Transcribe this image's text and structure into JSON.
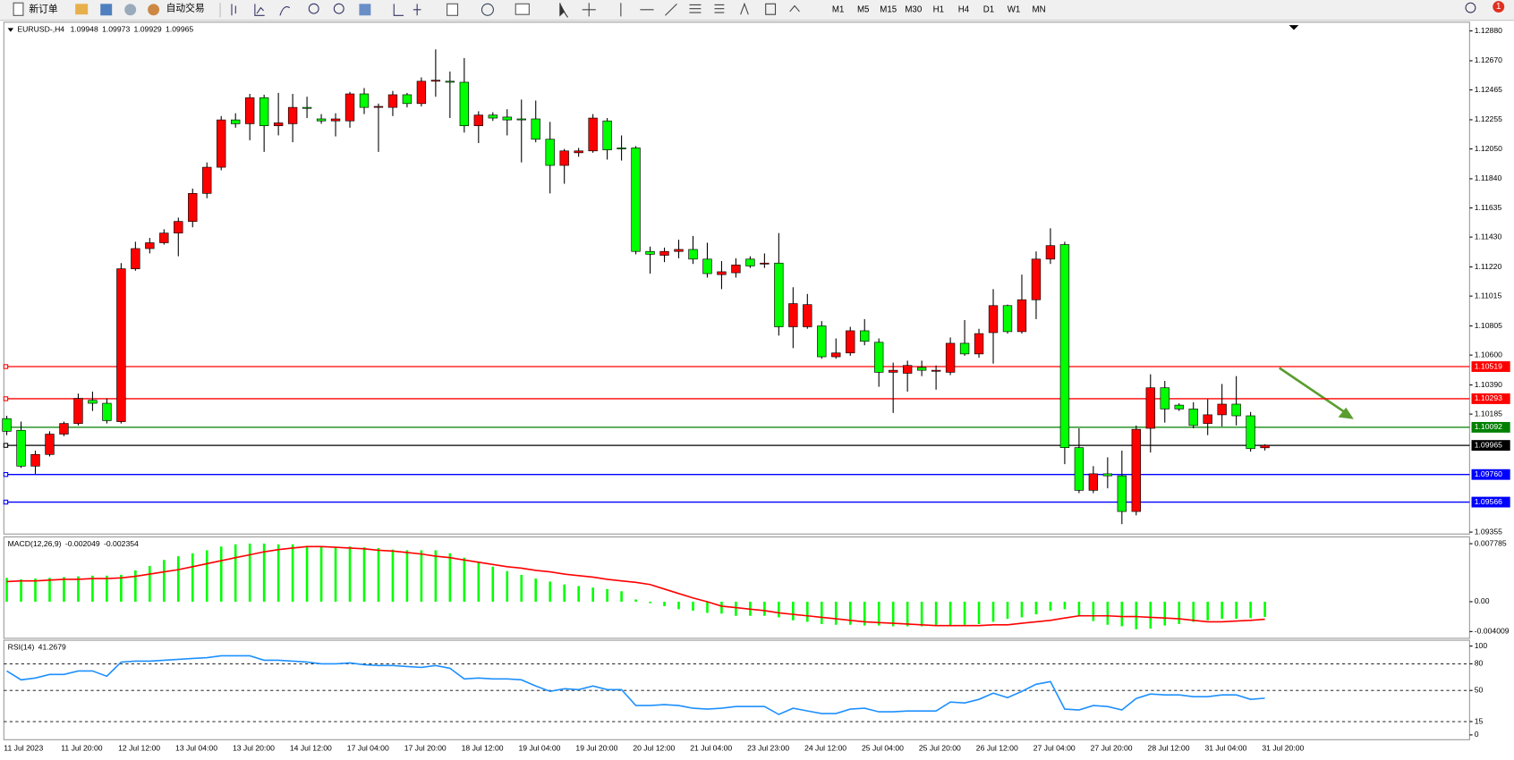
{
  "toolbar": {
    "buttons": [
      "新订单",
      "自动交易"
    ],
    "timeframes": [
      "M1",
      "M5",
      "M15",
      "M30",
      "H1",
      "H4",
      "D1",
      "W1",
      "MN"
    ],
    "badge": 1
  },
  "chart_data": [
    {
      "type": "candlestick",
      "title": "EURUSD-,H4",
      "categories": [
        "11 Jul 2023",
        null,
        null,
        null,
        "11 Jul 20:00",
        null,
        null,
        null,
        "12 Jul 12:00",
        null,
        null,
        null,
        "13 Jul 04:00",
        null,
        null,
        null,
        "13 Jul 20:00",
        null,
        null,
        null,
        "14 Jul 12:00",
        null,
        null,
        null,
        "17 Jul 04:00",
        null,
        null,
        null,
        "17 Jul 20:00",
        null,
        null,
        null,
        "18 Jul 12:00",
        null,
        null,
        null,
        "19 Jul 04:00",
        null,
        null,
        null,
        "19 Jul 20:00",
        null,
        null,
        null,
        "20 Jul 12:00",
        null,
        null,
        null,
        "21 Jul 04:00",
        null,
        null,
        null,
        "23 Jul 23:00",
        null,
        null,
        null,
        "24 Jul 12:00",
        null,
        null,
        null,
        "25 Jul 04:00",
        null,
        null,
        null,
        "25 Jul 20:00",
        null,
        null,
        null,
        "26 Jul 12:00",
        null,
        null,
        null,
        "27 Jul 04:00",
        null,
        null,
        null,
        "27 Jul 20:00",
        null,
        null,
        null,
        "28 Jul 12:00",
        null,
        null,
        null,
        "31 Jul 04:00",
        null,
        null,
        null,
        "31 Jul 20:00"
      ],
      "open": [
        1.10153,
        1.10071,
        1.09819,
        1.09901,
        1.10044,
        1.10119,
        1.10282,
        1.10261,
        1.10132,
        1.11207,
        1.11349,
        1.1139,
        1.11458,
        1.1154,
        1.11737,
        1.11921,
        1.12254,
        1.12227,
        1.1241,
        1.12213,
        1.12227,
        1.12342,
        1.12261,
        1.12247,
        1.12247,
        1.12437,
        1.12342,
        1.12342,
        1.12431,
        1.12369,
        1.12526,
        1.12526,
        1.12519,
        1.12213,
        1.12288,
        1.12274,
        1.12261,
        1.12261,
        1.12118,
        1.11934,
        1.12023,
        1.12036,
        1.12247,
        1.12057,
        1.12057,
        1.11329,
        1.11302,
        1.11329,
        1.11343,
        1.11275,
        1.11166,
        1.11179,
        1.11275,
        1.11241,
        1.11247,
        1.10799,
        1.10799,
        1.10805,
        1.10588,
        1.10615,
        1.10771,
        1.1069,
        1.10479,
        1.10472,
        1.10513,
        1.10486,
        1.10479,
        1.10683,
        1.10608,
        1.10758,
        1.10948,
        1.10765,
        1.10989,
        1.11275,
        1.11377,
        1.09949,
        1.09649,
        1.09765,
        1.09751,
        1.095,
        1.10085,
        1.1037,
        1.10248,
        1.10221,
        1.10119,
        1.1018,
        1.10255,
        1.10173,
        1.09948
      ],
      "high": [
        1.10173,
        1.10132,
        1.09928,
        1.10064,
        1.10132,
        1.10329,
        1.10343,
        1.10295,
        1.11247,
        1.11397,
        1.11424,
        1.11485,
        1.11567,
        1.11771,
        1.11955,
        1.12281,
        1.12301,
        1.12437,
        1.12431,
        1.12444,
        1.12437,
        1.12417,
        1.12295,
        1.12301,
        1.12451,
        1.12478,
        1.12369,
        1.12458,
        1.12444,
        1.12553,
        1.1275,
        1.12594,
        1.12689,
        1.12315,
        1.12308,
        1.12329,
        1.12397,
        1.1239,
        1.1224,
        1.1205,
        1.12057,
        1.12295,
        1.12267,
        1.12145,
        1.1207,
        1.11363,
        1.11356,
        1.11411,
        1.11438,
        1.1139,
        1.11261,
        1.11281,
        1.11295,
        1.11315,
        1.11458,
        1.11077,
        1.1103,
        1.10839,
        1.10717,
        1.10799,
        1.10853,
        1.10717,
        1.10547,
        1.10561,
        1.10561,
        1.10527,
        1.10724,
        1.10846,
        1.10785,
        1.11064,
        1.10955,
        1.11166,
        1.11329,
        1.11492,
        1.11397,
        1.10085,
        1.09819,
        1.09881,
        1.09928,
        1.10105,
        1.10465,
        1.10418,
        1.10261,
        1.10268,
        1.10289,
        1.10397,
        1.10452,
        1.102,
        1.09973
      ],
      "low": [
        1.10037,
        1.09806,
        1.09765,
        1.09887,
        1.1003,
        1.10105,
        1.10207,
        1.10119,
        1.10119,
        1.11193,
        1.11315,
        1.11377,
        1.11295,
        1.11499,
        1.11703,
        1.119,
        1.12199,
        1.12111,
        1.12029,
        1.12145,
        1.12097,
        1.12267,
        1.12227,
        1.12138,
        1.12199,
        1.12295,
        1.12029,
        1.12281,
        1.12342,
        1.12349,
        1.12417,
        1.12267,
        1.12165,
        1.12091,
        1.12247,
        1.12145,
        1.11955,
        1.12097,
        1.11737,
        1.11805,
        1.11995,
        1.12023,
        1.11975,
        1.11968,
        1.11309,
        1.11173,
        1.11254,
        1.11281,
        1.11241,
        1.11145,
        1.11064,
        1.11145,
        1.11213,
        1.11213,
        1.10737,
        1.10649,
        1.10785,
        1.10574,
        1.10574,
        1.10595,
        1.10669,
        1.10377,
        1.10193,
        1.10343,
        1.10452,
        1.10357,
        1.10459,
        1.10595,
        1.10581,
        1.1054,
        1.10751,
        1.10751,
        1.10853,
        1.11241,
        1.09833,
        1.09629,
        1.09629,
        1.09663,
        1.09411,
        1.09473,
        1.09915,
        1.10125,
        1.10207,
        1.10085,
        1.10037,
        1.10098,
        1.10105,
        1.09921,
        1.09929
      ],
      "close": [
        1.10064,
        1.09819,
        1.09901,
        1.10044,
        1.10119,
        1.10295,
        1.10261,
        1.10139,
        1.11207,
        1.11349,
        1.1139,
        1.11458,
        1.1154,
        1.11737,
        1.11921,
        1.12254,
        1.12227,
        1.1241,
        1.12213,
        1.12233,
        1.12342,
        1.12335,
        1.12247,
        1.12261,
        1.12437,
        1.12342,
        1.12349,
        1.12431,
        1.12369,
        1.12526,
        1.12533,
        1.12519,
        1.12213,
        1.12288,
        1.12267,
        1.12254,
        1.12254,
        1.12118,
        1.11934,
        1.12036,
        1.12036,
        1.12267,
        1.12043,
        1.1205,
        1.11329,
        1.11309,
        1.11329,
        1.11343,
        1.11275,
        1.11173,
        1.11186,
        1.11234,
        1.11227,
        1.11247,
        1.10799,
        1.10962,
        1.10955,
        1.10588,
        1.10615,
        1.10771,
        1.10697,
        1.10479,
        1.10493,
        1.10527,
        1.10493,
        1.10493,
        1.10683,
        1.10608,
        1.10751,
        1.10948,
        1.10765,
        1.10989,
        1.11275,
        1.1137,
        1.09949,
        1.09649,
        1.09765,
        1.09751,
        1.095,
        1.10078,
        1.1037,
        1.10221,
        1.10221,
        1.10105,
        1.1018,
        1.10255,
        1.10173,
        1.09942,
        1.09965
      ],
      "up_color": "#ff0000",
      "down_color": "#00ff00",
      "ylim": [
        1.09355,
        1.1288
      ],
      "yticks": [
        {
          "value": 1.1288,
          "label": "1.12880"
        },
        {
          "value": 1.1267,
          "label": "1.12670"
        },
        1.12465,
        1.12255,
        {
          "value": 1.1205,
          "label": "1.12050"
        },
        {
          "value": 1.1184,
          "label": "1.11840"
        },
        1.11635,
        {
          "value": 1.1143,
          "label": "1.11430"
        },
        {
          "value": 1.1122,
          "label": "1.11220"
        },
        1.11015,
        1.10805,
        {
          "value": 1.106,
          "label": "1.10600"
        },
        {
          "value": 1.1039,
          "label": "1.10390"
        },
        1.10185,
        1.09355
      ],
      "levels": [
        {
          "price": 1.10519,
          "color": "#ff0000"
        },
        {
          "price": 1.10293,
          "color": "#ff0000"
        },
        {
          "price": 1.10092,
          "color": "#008000"
        },
        {
          "price": 1.09965,
          "color": "#000000"
        },
        {
          "price": 1.0976,
          "label": "1.09760",
          "color": "#0000ff"
        },
        {
          "price": 1.09566,
          "color": "#0000ff"
        }
      ]
    },
    {
      "type": "macd",
      "title": "MACD(12,26,9)",
      "series": [
        {
          "color": "#00ff00",
          "values": [
            0.0032,
            0.003,
            0.0031,
            0.0032,
            0.0033,
            0.0034,
            0.0035,
            0.0035,
            0.0036,
            0.0042,
            0.0048,
            0.0056,
            0.0061,
            0.0065,
            0.0069,
            0.0074,
            0.0077,
            0.0078,
            0.0078,
            0.0077,
            0.0077,
            0.0075,
            0.0074,
            0.0073,
            0.0074,
            0.0073,
            0.0072,
            0.007,
            0.0069,
            0.0069,
            0.0069,
            0.0065,
            0.0059,
            0.0053,
            0.0047,
            0.0041,
            0.0036,
            0.0031,
            0.0027,
            0.0023,
            0.0021,
            0.0019,
            0.0017,
            0.0014,
            0.0003,
            -0.0002,
            -0.0006,
            -0.001,
            -0.0012,
            -0.0015,
            -0.0016,
            -0.0019,
            -0.0019,
            -0.0019,
            -0.0021,
            -0.0025,
            -0.0027,
            -0.003,
            -0.0031,
            -0.0031,
            -0.0032,
            -0.0032,
            -0.0033,
            -0.0033,
            -0.0033,
            -0.0033,
            -0.0032,
            -0.0031,
            -0.003,
            -0.0027,
            -0.0023,
            -0.0021,
            -0.0017,
            -0.0012,
            -0.001,
            -0.0019,
            -0.0026,
            -0.0031,
            -0.0033,
            -0.0037,
            -0.0036,
            -0.0032,
            -0.003,
            -0.0027,
            -0.0025,
            -0.0023,
            -0.0023,
            -0.0022,
            -0.002049
          ]
        },
        {
          "color": "#ff0000",
          "values": [
            0.0027,
            0.0028,
            0.0028,
            0.0029,
            0.003,
            0.003,
            0.0031,
            0.0031,
            0.0032,
            0.0034,
            0.0037,
            0.004,
            0.0043,
            0.0047,
            0.0051,
            0.0055,
            0.0059,
            0.0063,
            0.0067,
            0.007,
            0.0072,
            0.0074,
            0.0074,
            0.0073,
            0.0072,
            0.0071,
            0.0069,
            0.0068,
            0.0066,
            0.0064,
            0.0061,
            0.0059,
            0.0056,
            0.0053,
            0.005,
            0.0047,
            0.0045,
            0.0042,
            0.004,
            0.0037,
            0.0035,
            0.0033,
            0.003,
            0.0028,
            0.0026,
            0.0023,
            0.0017,
            0.0011,
            0.0005,
            0.0,
            -0.0006,
            -0.0008,
            -0.001,
            -0.0012,
            -0.0015,
            -0.0017,
            -0.0019,
            -0.0021,
            -0.0023,
            -0.0025,
            -0.0027,
            -0.0028,
            -0.0029,
            -0.003,
            -0.0031,
            -0.0032,
            -0.0032,
            -0.0032,
            -0.0032,
            -0.0031,
            -0.0031,
            -0.0029,
            -0.0027,
            -0.0025,
            -0.0022,
            -0.0019,
            -0.0019,
            -0.0019,
            -0.002,
            -0.002,
            -0.0021,
            -0.0022,
            -0.0023,
            -0.0025,
            -0.0027,
            -0.0027,
            -0.0026,
            -0.0025,
            -0.002354
          ]
        }
      ],
      "ylim": [
        -0.004009,
        0.007785
      ],
      "yticks": [
        0.007785,
        {
          "value": 0,
          "label": "0.00"
        },
        -0.004009
      ]
    },
    {
      "type": "rsi",
      "title": "RSI(14)",
      "series": [
        {
          "color": "#1e90ff",
          "values": [
            72,
            62,
            64,
            68,
            68,
            72,
            72,
            66,
            82,
            83,
            83,
            84,
            85,
            86,
            87,
            89,
            89,
            89,
            84,
            84,
            83,
            82,
            80,
            80,
            81,
            79,
            78,
            78,
            77,
            76,
            78,
            75,
            63,
            64,
            63,
            63,
            62,
            55,
            49,
            52,
            51,
            55,
            51,
            51,
            33,
            33,
            34,
            33,
            30,
            29,
            30,
            32,
            32,
            32,
            23,
            30,
            27,
            24,
            24,
            29,
            30,
            26,
            26,
            27,
            27,
            27,
            37,
            36,
            40,
            47,
            42,
            49,
            57,
            60,
            29,
            28,
            33,
            32,
            28,
            41,
            46,
            45,
            45,
            43,
            43,
            45,
            45,
            40,
            41.2679
          ]
        }
      ],
      "ylim": [
        0,
        100
      ],
      "yticks": [
        100,
        80,
        50,
        15,
        0
      ],
      "levels": [
        80,
        50,
        15
      ]
    }
  ]
}
